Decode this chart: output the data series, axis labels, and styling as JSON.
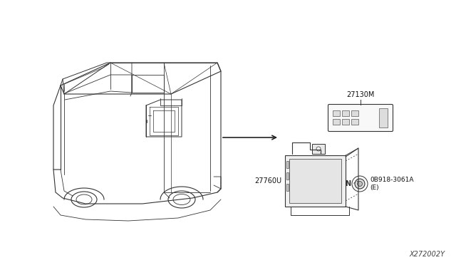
{
  "bg_color": "#ffffff",
  "figure_width": 6.4,
  "figure_height": 3.72,
  "dpi": 100,
  "part_number": "X272002Y",
  "label_27130M": "27130M",
  "label_27760U": "27760U",
  "label_bolt": "0B918-3061A\n(E)",
  "label_bolt_N": "N",
  "line_color": "#333333",
  "lw": 0.7
}
